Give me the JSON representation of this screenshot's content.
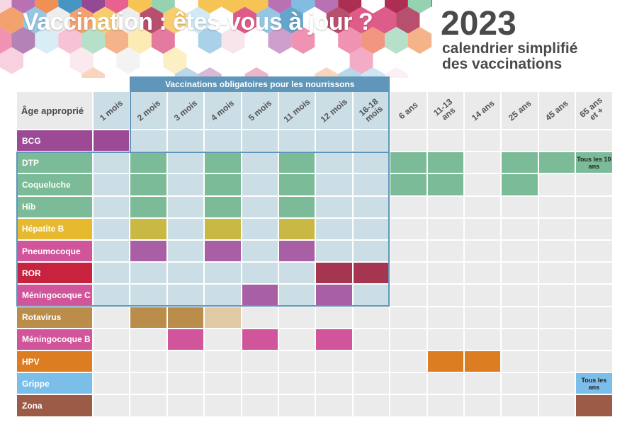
{
  "header": {
    "title": "Vaccination : êtes-vous à jour ?",
    "year": "2023",
    "subtitle_line1": "calendrier simplifié",
    "subtitle_line2": "des vaccinations"
  },
  "table": {
    "corner_label": "Âge approprié",
    "mandatory_banner": "Vaccinations obligatoires pour les nourrissons",
    "ages": [
      "1 mois",
      "2 mois",
      "3 mois",
      "4 mois",
      "5 mois",
      "11 mois",
      "12 mois",
      "16-18 mois",
      "6 ans",
      "11-13 ans",
      "14 ans",
      "25 ans",
      "45 ans",
      "65 ans et +"
    ],
    "mandatory_age_columns": [
      0,
      7
    ],
    "rows": [
      {
        "name": "BCG",
        "color": "#9c4a96",
        "filled": [
          0
        ],
        "notes": {}
      },
      {
        "name": "DTP",
        "color": "#7bbb97",
        "filled": [
          1,
          3,
          5,
          8,
          9,
          11,
          12
        ],
        "notes": {
          "13": "Tous les 10 ans"
        }
      },
      {
        "name": "Coqueluche",
        "color": "#7bbb97",
        "filled": [
          1,
          3,
          5,
          8,
          9,
          11
        ],
        "notes": {}
      },
      {
        "name": "Hib",
        "color": "#7bbb97",
        "filled": [
          1,
          3,
          5
        ],
        "notes": {}
      },
      {
        "name": "Hépatite B",
        "color": "#e6b92e",
        "cell_color": "#c9b843",
        "filled": [
          1,
          3,
          5
        ],
        "notes": {}
      },
      {
        "name": "Pneumocoque",
        "color": "#d0559a",
        "cell_color": "#a95fa3",
        "filled": [
          1,
          3,
          5
        ],
        "notes": {}
      },
      {
        "name": "ROR",
        "color": "#c7233f",
        "cell_color": "#a6364f",
        "filled": [
          6,
          7
        ],
        "notes": {}
      },
      {
        "name": "Méningocoque C",
        "color": "#d0559a",
        "cell_color": "#a95fa3",
        "filled": [
          4,
          6
        ],
        "notes": {}
      },
      {
        "name": "Rotavirus",
        "color": "#bb8d4b",
        "filled": [
          1,
          2
        ],
        "light": [
          3
        ],
        "light_color": "#e0caa5",
        "notes": {}
      },
      {
        "name": "Méningocoque B",
        "color": "#d0559a",
        "filled": [
          2,
          4,
          6
        ],
        "notes": {}
      },
      {
        "name": "HPV",
        "color": "#dd7d22",
        "filled": [
          9,
          10
        ],
        "notes": {}
      },
      {
        "name": "Grippe",
        "color": "#7cbeea",
        "filled": [],
        "notes": {
          "13": "Tous les ans"
        }
      },
      {
        "name": "Zona",
        "color": "#9c5b47",
        "filled": [
          13
        ],
        "notes": {}
      }
    ]
  }
}
